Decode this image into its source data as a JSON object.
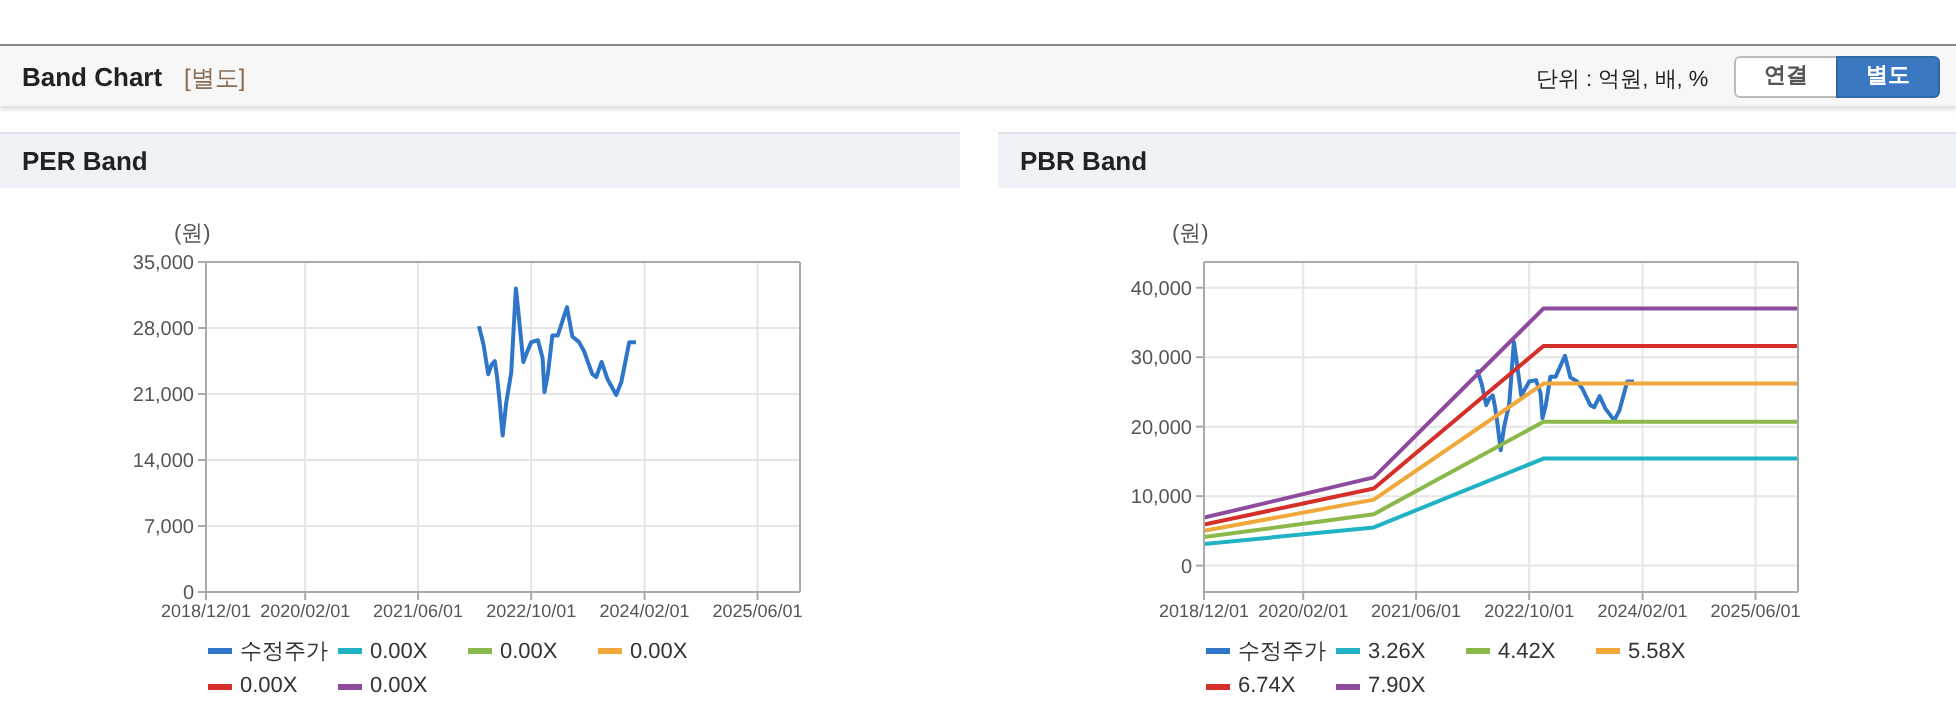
{
  "chart_data": [
    {
      "type": "line",
      "title": "PER Band",
      "ylabel": "(원)",
      "annotations": [
        "Band Chart",
        "[별도]",
        "단위 : 억원, 배, %",
        "연결",
        "별도"
      ],
      "xlim": [
        "2018-12-01",
        "2025-12-01"
      ],
      "xticks": [
        {
          "value": "2018-12-01",
          "label": "2018/12/01"
        },
        {
          "value": "2020-02-01",
          "label": "2020/02/01"
        },
        {
          "value": "2021-06-01",
          "label": "2021/06/01"
        },
        {
          "value": "2022-10-01",
          "label": "2022/10/01"
        },
        {
          "value": "2024-02-01",
          "label": "2024/02/01"
        },
        {
          "value": "2025-06-01",
          "label": "2025/06/01"
        }
      ],
      "ylim": [
        0,
        35000
      ],
      "yticks": [
        0,
        {
          "value": 7000,
          "label": "7,000"
        },
        {
          "value": 14000,
          "label": "14,000"
        },
        {
          "value": 21000,
          "label": "21,000"
        },
        {
          "value": 28000,
          "label": "28,000"
        },
        {
          "value": 35000,
          "label": "35,000"
        }
      ],
      "grid": true,
      "legend": "bottom",
      "marker": "none",
      "line_style": "solid",
      "x": [
        "2022-02-18",
        "2022-03-10",
        "2022-03-30",
        "2022-04-13",
        "2022-04-27",
        "2022-05-06",
        "2022-05-17",
        "2022-05-31",
        "2022-06-15",
        "2022-07-07",
        "2022-07-27",
        "2022-08-05",
        "2022-08-28",
        "2022-09-14",
        "2022-10-01",
        "2022-10-30",
        "2022-11-19",
        "2022-11-27",
        "2022-12-11",
        "2022-12-31",
        "2023-01-23",
        "2023-02-21",
        "2023-03-04",
        "2023-03-27",
        "2023-04-25",
        "2023-05-17",
        "2023-06-21",
        "2023-07-08",
        "2023-07-31",
        "2023-08-25",
        "2023-10-02",
        "2023-10-24",
        "2023-11-27",
        "2023-12-26"
      ],
      "series": [
        {
          "name": "수정주가",
          "color": "#2f75c8",
          "values": [
            28200,
            26200,
            23100,
            24100,
            24500,
            23000,
            20500,
            16600,
            20000,
            23300,
            32200,
            30100,
            24400,
            25500,
            26500,
            26700,
            24800,
            21200,
            23000,
            27200,
            27200,
            29400,
            30200,
            27100,
            26500,
            25500,
            23100,
            22800,
            24400,
            22600,
            20900,
            22300,
            26500,
            26500
          ]
        },
        {
          "name": "0.00X",
          "color": "#1fb3c4",
          "values": [
            null,
            null,
            null,
            null,
            null,
            null,
            null,
            null,
            null,
            null,
            null,
            null,
            null,
            null,
            null,
            null,
            null,
            null,
            null,
            null,
            null,
            null,
            null,
            null,
            null,
            null,
            null,
            null,
            null,
            null,
            null,
            null,
            null,
            null
          ]
        },
        {
          "name": "0.00X",
          "color": "#8ab84a",
          "values": [
            null,
            null,
            null,
            null,
            null,
            null,
            null,
            null,
            null,
            null,
            null,
            null,
            null,
            null,
            null,
            null,
            null,
            null,
            null,
            null,
            null,
            null,
            null,
            null,
            null,
            null,
            null,
            null,
            null,
            null,
            null,
            null,
            null,
            null
          ]
        },
        {
          "name": "0.00X",
          "color": "#f0a83a",
          "values": [
            null,
            null,
            null,
            null,
            null,
            null,
            null,
            null,
            null,
            null,
            null,
            null,
            null,
            null,
            null,
            null,
            null,
            null,
            null,
            null,
            null,
            null,
            null,
            null,
            null,
            null,
            null,
            null,
            null,
            null,
            null,
            null,
            null,
            null
          ]
        },
        {
          "name": "0.00X",
          "color": "#d62f2a",
          "values": [
            null,
            null,
            null,
            null,
            null,
            null,
            null,
            null,
            null,
            null,
            null,
            null,
            null,
            null,
            null,
            null,
            null,
            null,
            null,
            null,
            null,
            null,
            null,
            null,
            null,
            null,
            null,
            null,
            null,
            null,
            null,
            null,
            null,
            null
          ]
        },
        {
          "name": "0.00X",
          "color": "#8e4a9d",
          "values": [
            null,
            null,
            null,
            null,
            null,
            null,
            null,
            null,
            null,
            null,
            null,
            null,
            null,
            null,
            null,
            null,
            null,
            null,
            null,
            null,
            null,
            null,
            null,
            null,
            null,
            null,
            null,
            null,
            null,
            null,
            null,
            null,
            null,
            null
          ]
        }
      ]
    },
    {
      "type": "line",
      "title": "PBR Band",
      "ylabel": "(원)",
      "xlim": [
        "2018-12-01",
        "2025-12-01"
      ],
      "xticks": [
        {
          "value": "2018-12-01",
          "label": "2018/12/01"
        },
        {
          "value": "2020-02-01",
          "label": "2020/02/01"
        },
        {
          "value": "2021-06-01",
          "label": "2021/06/01"
        },
        {
          "value": "2022-10-01",
          "label": "2022/10/01"
        },
        {
          "value": "2024-02-01",
          "label": "2024/02/01"
        },
        {
          "value": "2025-06-01",
          "label": "2025/06/01"
        }
      ],
      "ylim": [
        -3800,
        43700
      ],
      "yticks": [
        0,
        {
          "value": 10000,
          "label": "10,000"
        },
        {
          "value": 20000,
          "label": "20,000"
        },
        {
          "value": 30000,
          "label": "30,000"
        },
        {
          "value": 40000,
          "label": "40,000"
        }
      ],
      "grid": true,
      "legend": "bottom",
      "marker": "none",
      "line_style": "solid",
      "x": [
        "2022-02-18",
        "2022-03-10",
        "2022-03-30",
        "2022-04-13",
        "2022-04-27",
        "2022-05-06",
        "2022-05-17",
        "2022-05-31",
        "2022-06-15",
        "2022-07-07",
        "2022-07-27",
        "2022-08-05",
        "2022-08-28",
        "2022-09-14",
        "2022-10-01",
        "2022-10-30",
        "2022-11-19",
        "2022-11-27",
        "2022-12-11",
        "2022-12-31",
        "2023-01-23",
        "2023-02-21",
        "2023-03-04",
        "2023-03-27",
        "2023-04-25",
        "2023-05-17",
        "2023-06-21",
        "2023-07-08",
        "2023-07-31",
        "2023-08-25",
        "2023-10-02",
        "2023-10-24",
        "2023-11-27",
        "2023-12-26"
      ],
      "series": [
        {
          "name": "수정주가",
          "color": "#2f75c8",
          "values": [
            28200,
            26200,
            23100,
            24100,
            24500,
            23000,
            20500,
            16600,
            20000,
            23300,
            32200,
            30100,
            24400,
            25500,
            26500,
            26700,
            24800,
            21200,
            23000,
            27200,
            27200,
            29400,
            30200,
            27100,
            26500,
            25500,
            23100,
            22800,
            24400,
            22600,
            20900,
            22300,
            26500,
            26500
          ]
        },
        {
          "name": "3.26X",
          "color": "#1fb3c4",
          "x": [
            "2018-12-01",
            "2020-12-01",
            "2022-12-01",
            "2025-12-01"
          ],
          "values": [
            3100,
            5500,
            15400,
            15400
          ]
        },
        {
          "name": "4.42X",
          "color": "#8ab84a",
          "x": [
            "2018-12-01",
            "2020-12-01",
            "2022-12-01",
            "2025-12-01"
          ],
          "values": [
            4100,
            7400,
            20700,
            20700
          ]
        },
        {
          "name": "5.58X",
          "color": "#f0a83a",
          "x": [
            "2018-12-01",
            "2020-12-01",
            "2022-12-01",
            "2025-12-01"
          ],
          "values": [
            5000,
            9500,
            26200,
            26200
          ]
        },
        {
          "name": "6.74X",
          "color": "#d62f2a",
          "x": [
            "2018-12-01",
            "2020-12-01",
            "2022-12-01",
            "2025-12-01"
          ],
          "values": [
            5900,
            11100,
            31600,
            31600
          ]
        },
        {
          "name": "7.90X",
          "color": "#8e4a9d",
          "x": [
            "2018-12-01",
            "2020-12-01",
            "2022-12-01",
            "2025-12-01"
          ],
          "values": [
            6900,
            12700,
            37000,
            37000
          ]
        }
      ]
    }
  ]
}
